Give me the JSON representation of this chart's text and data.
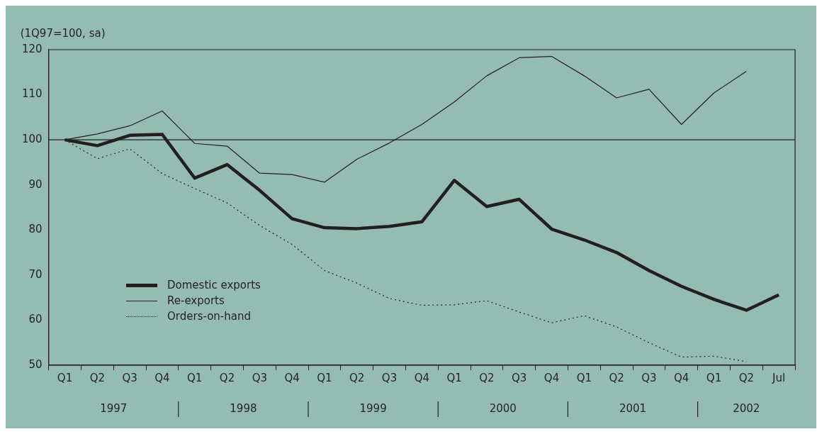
{
  "chart_data": {
    "type": "line",
    "ylabel": "(1Q97=100, sa)",
    "categories": [
      "Q1",
      "Q2",
      "Q3",
      "Q4",
      "Q1",
      "Q2",
      "Q3",
      "Q4",
      "Q1",
      "Q2",
      "Q3",
      "Q4",
      "Q1",
      "Q2",
      "Q3",
      "Q4",
      "Q1",
      "Q2",
      "Q3",
      "Q4",
      "Q1",
      "Q2",
      "Jul"
    ],
    "series": [
      {
        "name": "Domestic exports",
        "color": "#231f20",
        "line_style": "solid",
        "values": [
          100,
          98.7,
          101,
          101.2,
          91.5,
          94.5,
          88.8,
          82.5,
          80.5,
          80.3,
          80.8,
          81.8,
          91,
          85.2,
          86.8,
          80.2,
          77.8,
          75,
          71,
          67.5,
          64.6,
          62.2,
          65.6
        ]
      },
      {
        "name": "Re-exports",
        "color": "#231f20",
        "line_style": "solid",
        "values": [
          100,
          101.3,
          103.1,
          106.4,
          99.2,
          98.6,
          92.6,
          92.3,
          90.6,
          95.7,
          99.3,
          103.4,
          108.4,
          114.2,
          118.2,
          118.5,
          114.2,
          109.3,
          111.2,
          103.4,
          110.4,
          115.2,
          null
        ]
      },
      {
        "name": "Orders-on-hand",
        "color": "#231f20",
        "line_style": "dotted",
        "values": [
          100,
          95.8,
          98,
          92.5,
          89.2,
          86,
          81,
          76.8,
          71,
          68.2,
          64.8,
          63.3,
          63.4,
          64.3,
          61.8,
          59.4,
          61,
          58.5,
          55,
          51.8,
          52,
          50.8,
          null
        ]
      }
    ],
    "ylim": [
      50,
      120
    ],
    "yticks": [
      50,
      60,
      70,
      80,
      90,
      100,
      110,
      120
    ],
    "ref_lines": [
      {
        "axis": "y",
        "value": 100,
        "color": "#231f20"
      }
    ],
    "annotations": [
      "1997",
      "1998",
      "1999",
      "2000",
      "2001",
      "2002"
    ],
    "grid": false,
    "legend": "bottom left",
    "marker": "none"
  }
}
